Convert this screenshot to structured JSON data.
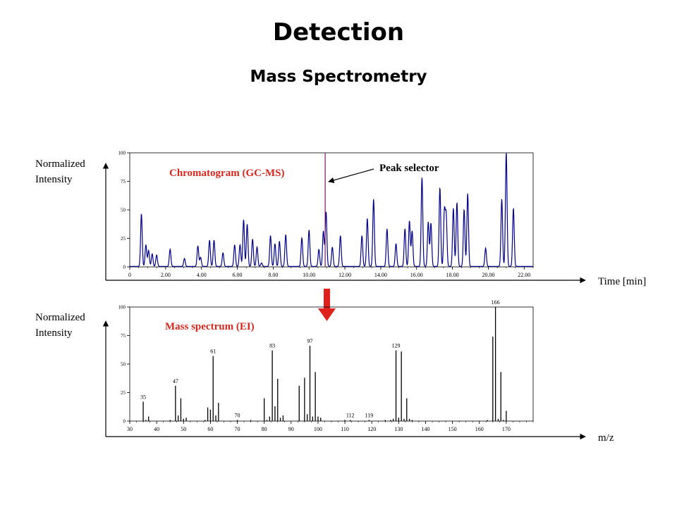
{
  "slide": {
    "title": "Detection",
    "subtitle": "Mass Spectrometry"
  },
  "chromatogram": {
    "ylabel_line1": "Normalized",
    "ylabel_line2": "Intensity",
    "xlabel": "Time [min]",
    "label": "Chromatogram (GC-MS)",
    "label_color": "#d9261c",
    "annotation": "Peak selector"
  },
  "spectrum": {
    "ylabel_line1": "Normalized",
    "ylabel_line2": "Intensity",
    "xlabel": "m/z",
    "label": "Mass spectrum (EI)",
    "label_color": "#d9261c"
  },
  "colors": {
    "trace": "#00008b",
    "selector": "#7b1a6e",
    "arrow": "#e0201b",
    "axis": "#000000"
  },
  "chart_data": [
    {
      "type": "line",
      "name": "chromatogram",
      "xlim": [
        0,
        22.5
      ],
      "ylim": [
        0,
        100
      ],
      "x_ticks": [
        "0",
        "2.00",
        "4.00",
        "6.00",
        "8.00",
        "10.00",
        "12.00",
        "14.00",
        "16.00",
        "18.00",
        "20.00",
        "22.00"
      ],
      "x_tick_values": [
        0,
        2,
        4,
        6,
        8,
        10,
        12,
        14,
        16,
        18,
        20,
        22
      ],
      "y_ticks": [
        "0",
        "25",
        "50",
        "75",
        "100"
      ],
      "y_tick_values": [
        0,
        25,
        50,
        75,
        100
      ],
      "selected_time": 10.9,
      "peaks": [
        [
          0.65,
          46
        ],
        [
          0.9,
          19
        ],
        [
          1.05,
          14
        ],
        [
          1.25,
          11
        ],
        [
          1.5,
          10
        ],
        [
          2.25,
          15
        ],
        [
          3.05,
          7
        ],
        [
          3.8,
          18
        ],
        [
          3.95,
          8
        ],
        [
          4.45,
          23
        ],
        [
          4.7,
          23
        ],
        [
          5.2,
          12
        ],
        [
          5.85,
          19
        ],
        [
          6.15,
          19
        ],
        [
          6.35,
          41
        ],
        [
          6.55,
          37
        ],
        [
          6.85,
          24
        ],
        [
          7.1,
          17
        ],
        [
          7.35,
          3
        ],
        [
          7.85,
          27
        ],
        [
          8.1,
          20
        ],
        [
          8.35,
          22
        ],
        [
          8.7,
          28
        ],
        [
          9.6,
          25
        ],
        [
          10.0,
          32
        ],
        [
          10.55,
          15
        ],
        [
          10.8,
          31
        ],
        [
          10.95,
          48
        ],
        [
          11.3,
          17
        ],
        [
          11.75,
          27
        ],
        [
          12.95,
          27
        ],
        [
          13.25,
          42
        ],
        [
          13.6,
          59
        ],
        [
          14.35,
          33
        ],
        [
          14.85,
          20
        ],
        [
          15.35,
          33
        ],
        [
          15.6,
          40
        ],
        [
          15.75,
          31
        ],
        [
          16.3,
          78
        ],
        [
          16.65,
          39
        ],
        [
          16.8,
          38
        ],
        [
          17.3,
          69
        ],
        [
          17.55,
          48
        ],
        [
          17.65,
          44
        ],
        [
          18.05,
          51
        ],
        [
          18.25,
          56
        ],
        [
          18.65,
          50
        ],
        [
          18.85,
          64
        ],
        [
          19.85,
          16
        ],
        [
          20.75,
          59
        ],
        [
          21.0,
          100
        ],
        [
          21.4,
          51
        ]
      ]
    },
    {
      "type": "bar",
      "name": "mass_spectrum",
      "xlim": [
        30,
        180
      ],
      "ylim": [
        0,
        100
      ],
      "x_ticks": [
        "30",
        "40",
        "50",
        "60",
        "70",
        "80",
        "90",
        "100",
        "110",
        "120",
        "130",
        "140",
        "150",
        "160",
        "170"
      ],
      "x_tick_values": [
        30,
        40,
        50,
        60,
        70,
        80,
        90,
        100,
        110,
        120,
        130,
        140,
        150,
        160,
        170
      ],
      "y_ticks": [
        "0",
        "25",
        "50",
        "75",
        "100"
      ],
      "y_tick_values": [
        0,
        25,
        50,
        75,
        100
      ],
      "peaks": [
        [
          35,
          17
        ],
        [
          36,
          1
        ],
        [
          37,
          4
        ],
        [
          45,
          1
        ],
        [
          47,
          31
        ],
        [
          48,
          5
        ],
        [
          49,
          20
        ],
        [
          50,
          2
        ],
        [
          51,
          3
        ],
        [
          58,
          1
        ],
        [
          59,
          12
        ],
        [
          60,
          10
        ],
        [
          61,
          57
        ],
        [
          62,
          5
        ],
        [
          63,
          16
        ],
        [
          70,
          1
        ],
        [
          75,
          1
        ],
        [
          80,
          20
        ],
        [
          81,
          1
        ],
        [
          82,
          4
        ],
        [
          83,
          62
        ],
        [
          84,
          13
        ],
        [
          85,
          37
        ],
        [
          86,
          3
        ],
        [
          87,
          5
        ],
        [
          93,
          31
        ],
        [
          95,
          38
        ],
        [
          96,
          6
        ],
        [
          97,
          66
        ],
        [
          98,
          4
        ],
        [
          99,
          43
        ],
        [
          100,
          4
        ],
        [
          101,
          3
        ],
        [
          110,
          1
        ],
        [
          112,
          1
        ],
        [
          119,
          1
        ],
        [
          125,
          1
        ],
        [
          127,
          1
        ],
        [
          128,
          2
        ],
        [
          129,
          62
        ],
        [
          130,
          3
        ],
        [
          131,
          61
        ],
        [
          132,
          2
        ],
        [
          133,
          20
        ],
        [
          134,
          2
        ],
        [
          135,
          1
        ],
        [
          163,
          1
        ],
        [
          165,
          74
        ],
        [
          166,
          100
        ],
        [
          167,
          2
        ],
        [
          168,
          43
        ],
        [
          169,
          1
        ],
        [
          170,
          9
        ]
      ],
      "peak_labels": [
        {
          "mz": 35,
          "text": "35",
          "height": 17
        },
        {
          "mz": 47,
          "text": "47",
          "height": 31
        },
        {
          "mz": 61,
          "text": "61",
          "height": 57
        },
        {
          "mz": 70,
          "text": "70",
          "height": 1
        },
        {
          "mz": 83,
          "text": "83",
          "height": 62
        },
        {
          "mz": 97,
          "text": "97",
          "height": 66
        },
        {
          "mz": 112,
          "text": "112",
          "height": 1
        },
        {
          "mz": 119,
          "text": "119",
          "height": 1
        },
        {
          "mz": 129,
          "text": "129",
          "height": 62
        },
        {
          "mz": 166,
          "text": "166",
          "height": 100
        }
      ]
    }
  ]
}
